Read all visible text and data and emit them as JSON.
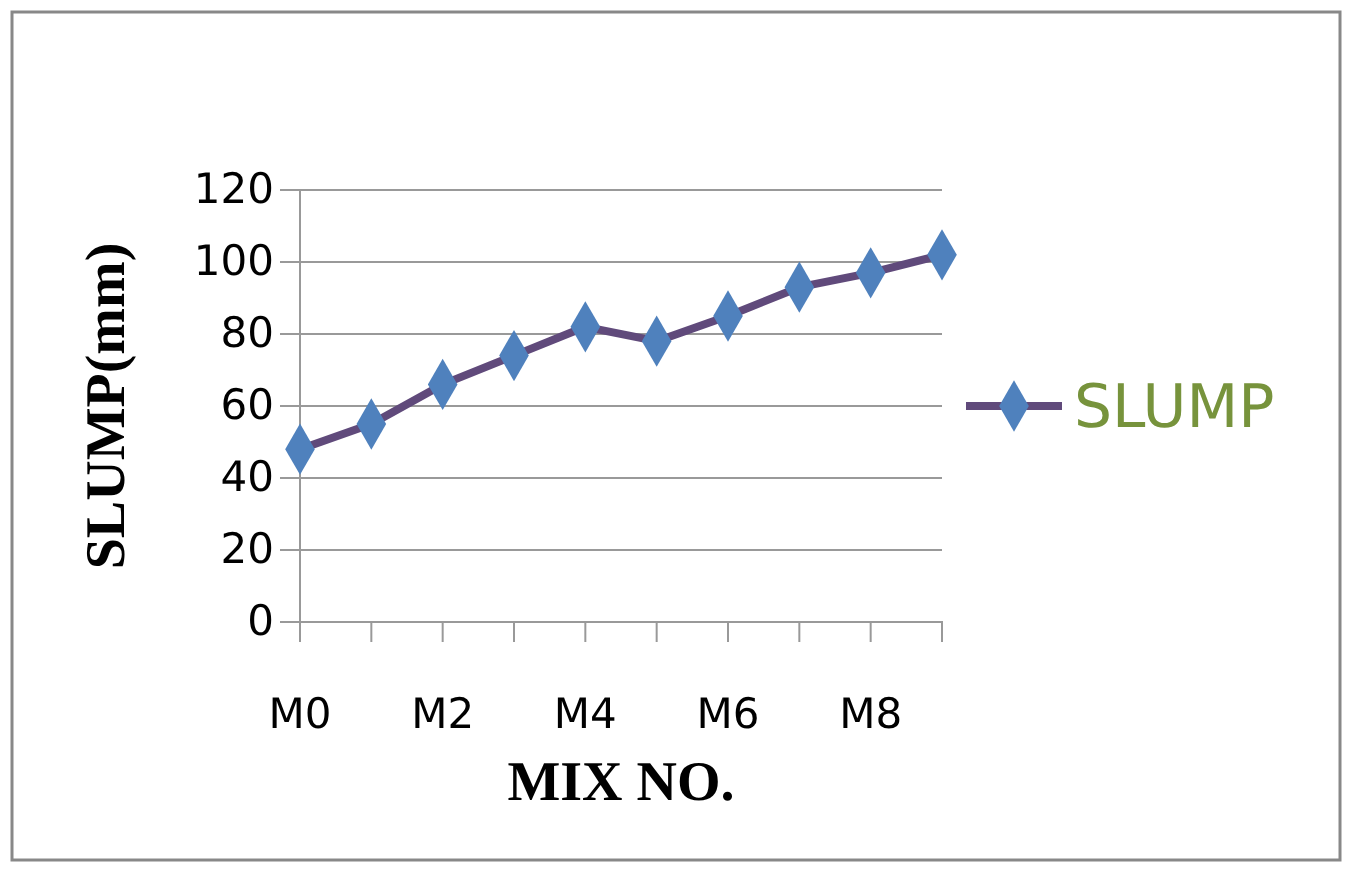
{
  "chart_data": {
    "type": "line",
    "xlabel": "MIX NO.",
    "ylabel": "SLUMP(mm)",
    "categories": [
      "M0",
      null,
      "M2",
      null,
      "M4",
      null,
      "M6",
      null,
      "M8",
      null
    ],
    "series": [
      {
        "name": "SLUMP",
        "color": "#4f81bd",
        "values": [
          48,
          55,
          66,
          74,
          82,
          78,
          85,
          93,
          97,
          102
        ]
      }
    ],
    "ylim": [
      0,
      120
    ],
    "yticks": [
      0,
      20,
      40,
      60,
      80,
      100,
      120
    ],
    "grid": "y",
    "legend": "right",
    "marker": "diamond"
  }
}
